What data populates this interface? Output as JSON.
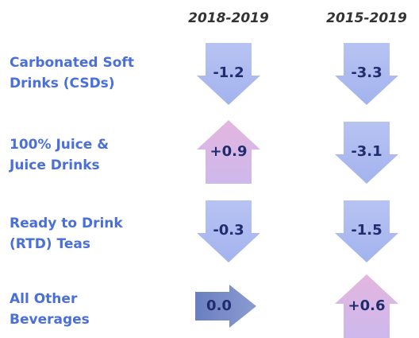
{
  "columns": [
    "2018-2019",
    "2015-2019"
  ],
  "rows": [
    {
      "label": [
        "Carbonated Soft",
        "Drinks (CSDs)"
      ],
      "values": [
        "-1.2",
        "-3.3"
      ]
    },
    {
      "label": [
        "100% Juice &",
        "Juice Drinks"
      ],
      "values": [
        "+0.9",
        "-3.1"
      ]
    },
    {
      "label": [
        "Ready to Drink",
        "(RTD) Teas"
      ],
      "values": [
        "-0.3",
        "-1.5"
      ]
    },
    {
      "label": [
        "All Other",
        "Beverages"
      ],
      "values": [
        "0.0",
        "+0.6"
      ]
    }
  ]
}
